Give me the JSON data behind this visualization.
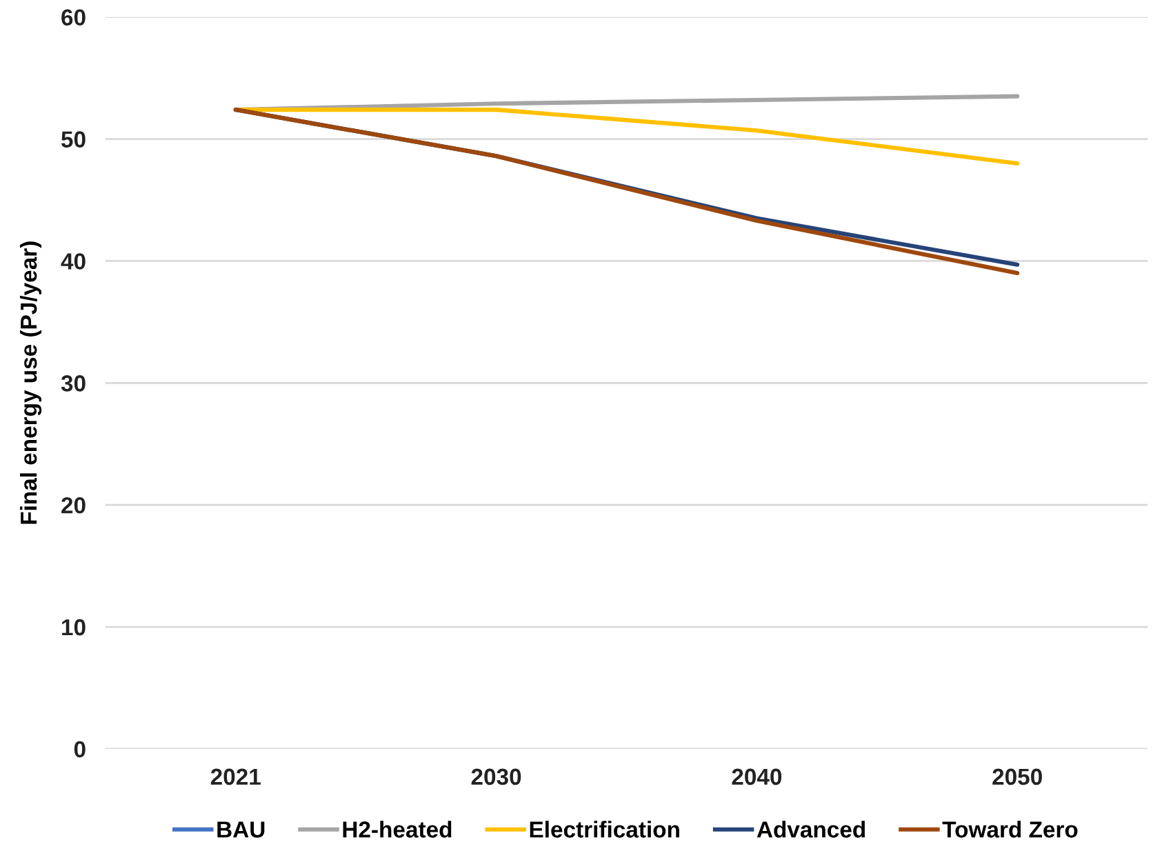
{
  "chart_data": {
    "type": "line",
    "ylabel": "Final energy use (PJ/year)",
    "categories": [
      "2021",
      "2030",
      "2040",
      "2050"
    ],
    "series": [
      {
        "name": "BAU",
        "color": "#4472c4",
        "values": [
          null,
          null,
          null,
          null
        ]
      },
      {
        "name": "H2-heated",
        "color": "#a5a5a5",
        "values": [
          52.4,
          52.9,
          53.2,
          53.5
        ]
      },
      {
        "name": "Electrification",
        "color": "#ffc000",
        "values": [
          52.4,
          52.4,
          50.7,
          48.0
        ]
      },
      {
        "name": "Advanced",
        "color": "#264478",
        "values": [
          52.4,
          48.6,
          43.5,
          39.7
        ]
      },
      {
        "name": "Toward Zero",
        "color": "#9e480e",
        "values": [
          52.4,
          48.6,
          43.3,
          39.0
        ]
      }
    ],
    "ylim": [
      0,
      60
    ],
    "yticks": [
      0,
      10,
      20,
      30,
      40,
      50,
      60
    ],
    "grid": "y",
    "legend": "bottom",
    "marker": "none",
    "line_style": "solid"
  }
}
